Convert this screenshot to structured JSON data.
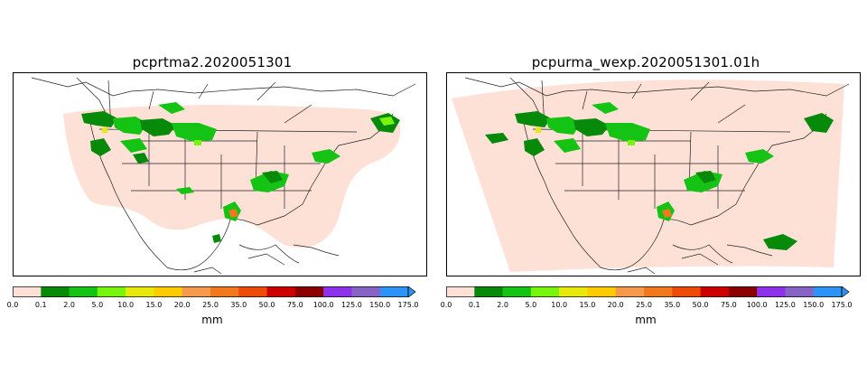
{
  "panels": [
    {
      "title": "pcprtma2.2020051301"
    },
    {
      "title": "pcpurma_wexp.2020051301.01h"
    }
  ],
  "colorbar": {
    "ticks": [
      "0.0",
      "0.1",
      "2.0",
      "5.0",
      "10.0",
      "15.0",
      "20.0",
      "25.0",
      "35.0",
      "50.0",
      "75.0",
      "100.0",
      "125.0",
      "150.0",
      "175.0"
    ],
    "colors": [
      "#fde1d7",
      "#078a0a",
      "#14c314",
      "#77f50e",
      "#e8e80c",
      "#fccb00",
      "#f59a4c",
      "#f2781d",
      "#ec4b0a",
      "#cd0000",
      "#8a0000",
      "#8c33ea",
      "#8863c6",
      "#2e93f6"
    ],
    "units": "mm"
  }
}
